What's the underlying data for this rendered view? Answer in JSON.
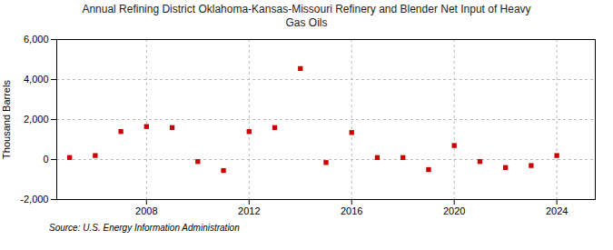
{
  "chart_data": {
    "type": "scatter",
    "title": "Annual Refining District Oklahoma-Kansas-Missouri Refinery and Blender Net Input of Heavy\nGas Oils",
    "ylabel": "Thousand Barrels",
    "source": "Source: U.S. Energy Information Administration",
    "x": [
      2005,
      2006,
      2007,
      2008,
      2009,
      2010,
      2011,
      2012,
      2013,
      2014,
      2015,
      2016,
      2017,
      2018,
      2019,
      2020,
      2021,
      2022,
      2023,
      2024
    ],
    "values": [
      100,
      200,
      1400,
      1650,
      1600,
      -100,
      -550,
      1400,
      1600,
      4550,
      -150,
      1350,
      100,
      100,
      -500,
      700,
      -100,
      -400,
      -300,
      200
    ],
    "color": "#cc0000",
    "marker": "square",
    "xlim": [
      2004.5,
      2025.5
    ],
    "xticks": [
      2008,
      2012,
      2016,
      2020,
      2024
    ],
    "ylim": [
      -2000,
      6000
    ],
    "yticks": [
      {
        "value": -2000,
        "label": "-2,000"
      },
      0,
      {
        "value": 2000,
        "label": "2,000"
      },
      {
        "value": 4000,
        "label": "4,000"
      },
      {
        "value": 6000,
        "label": "6,000"
      }
    ],
    "grid": true
  }
}
